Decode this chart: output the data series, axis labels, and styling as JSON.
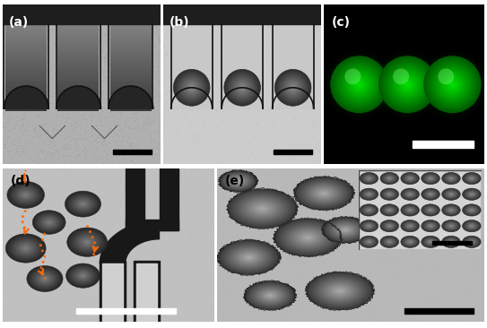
{
  "fig_width": 5.43,
  "fig_height": 3.66,
  "dpi": 100,
  "bg_color": "#ffffff",
  "panel_labels": [
    "(a)",
    "(b)",
    "(c)",
    "(d)",
    "(e)"
  ],
  "label_color": "#000000",
  "label_fontsize": 10,
  "label_fontweight": "bold",
  "scalebar_color_dark": "#000000",
  "scalebar_color_light": "#ffffff"
}
